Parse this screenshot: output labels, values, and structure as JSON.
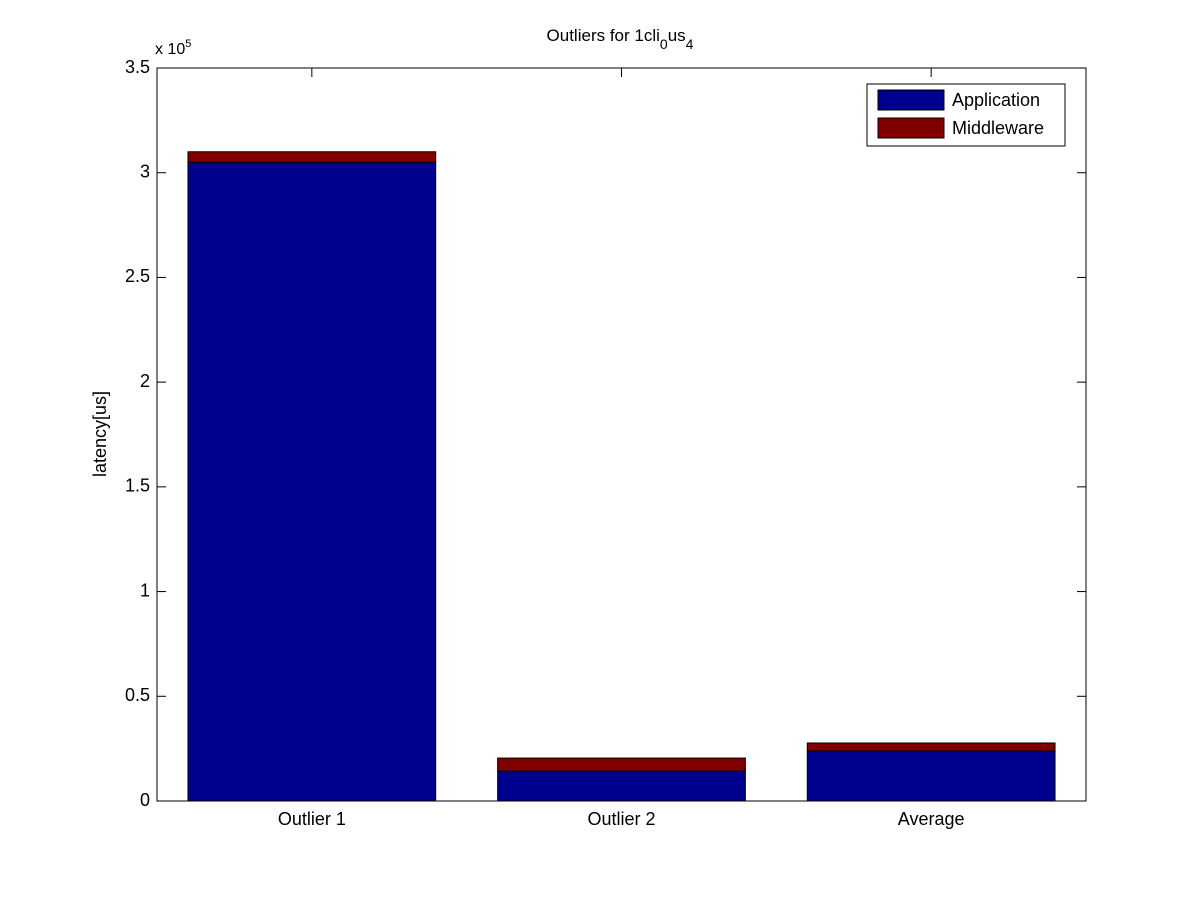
{
  "chart_data": {
    "type": "stacked_bar",
    "title_parts": [
      {
        "text": "Outliers for 1cli",
        "sub": false
      },
      {
        "text": "0",
        "sub": true
      },
      {
        "text": "us",
        "sub": false
      },
      {
        "text": "4",
        "sub": true
      }
    ],
    "y_label": "latency[us]",
    "y_multiplier": {
      "base": "x 10",
      "exponent": "5"
    },
    "categories": [
      "Outlier 1",
      "Outlier 2",
      "Average"
    ],
    "series": [
      {
        "name": "Application",
        "color": "#00008f",
        "values": [
          305000,
          14300,
          23900
        ]
      },
      {
        "name": "Middleware",
        "color": "#800000",
        "values": [
          5000,
          6200,
          3800
        ]
      }
    ],
    "ylim": [
      0,
      350000
    ],
    "yticks": [
      0,
      {
        "value": 50000,
        "label": "0.5"
      },
      {
        "value": 100000,
        "label": "1"
      },
      {
        "value": 150000,
        "label": "1.5"
      },
      {
        "value": 200000,
        "label": "2"
      },
      {
        "value": 250000,
        "label": "2.5"
      },
      {
        "value": 300000,
        "label": "3"
      },
      {
        "value": 350000,
        "label": "3.5"
      }
    ],
    "grid": false,
    "legend": "northeast"
  }
}
